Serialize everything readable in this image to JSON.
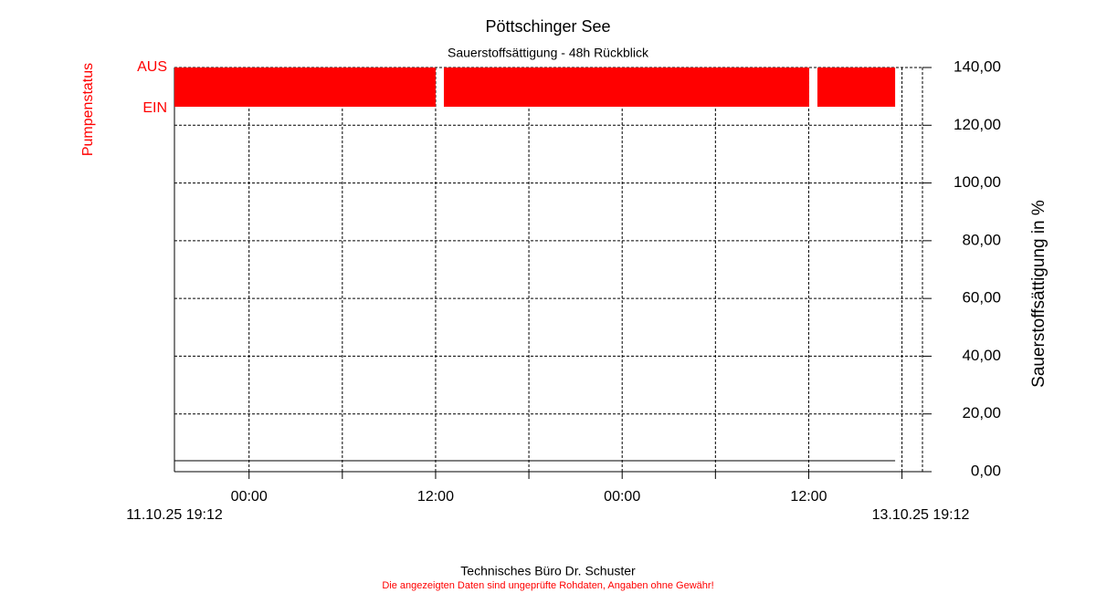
{
  "chart_data": {
    "type": "line",
    "title": "Pöttschinger See",
    "subtitle": "Sauerstoffsättigung - 48h Rückblick",
    "ylabel": "Sauerstoffsättigung in %",
    "pump_label": "Pumpenstatus",
    "pump_levels": [
      "AUS",
      "EIN"
    ],
    "pump_color": "#ff0000",
    "pump_segments": [
      {
        "start": 0,
        "end": 16.8
      },
      {
        "start": 17.33,
        "end": 40.83
      },
      {
        "start": 41.36,
        "end": 46.36
      }
    ],
    "x": [
      0,
      46.36
    ],
    "series": [
      {
        "name": "Sauerstoffsättigung",
        "color": "#000000",
        "values": [
          3.8,
          3.8
        ]
      }
    ],
    "xlim": [
      0,
      48
    ],
    "xticks": [
      {
        "value": 4.8,
        "label": "00:00"
      },
      {
        "value": 16.8,
        "label": "12:00"
      },
      {
        "value": 28.8,
        "label": "00:00"
      },
      {
        "value": 40.8,
        "label": "12:00"
      }
    ],
    "xticks_minor": [
      10.8,
      22.8,
      34.8,
      46.8
    ],
    "x_start_label": "11.10.25 19:12",
    "x_end_label": "13.10.25 19:12",
    "ylim": [
      0,
      140
    ],
    "yticks": [
      {
        "value": 0,
        "label": "0,00"
      },
      {
        "value": 20,
        "label": "20,00"
      },
      {
        "value": 40,
        "label": "40,00"
      },
      {
        "value": 60,
        "label": "60,00"
      },
      {
        "value": 80,
        "label": "80,00"
      },
      {
        "value": 100,
        "label": "100,00"
      },
      {
        "value": 120,
        "label": "120,00"
      },
      {
        "value": 140,
        "label": "140,00"
      }
    ],
    "grid": true,
    "footer": "Technisches Büro Dr. Schuster",
    "disclaimer": "Die angezeigten Daten sind ungeprüfte Rohdaten, Angaben ohne Gewähr!"
  }
}
